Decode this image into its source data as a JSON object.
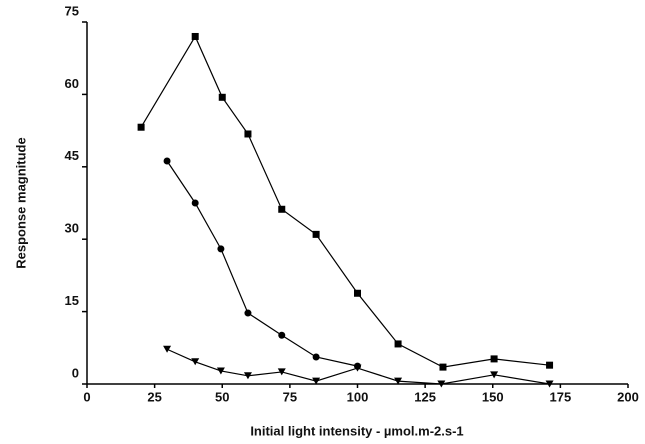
{
  "chart_data": {
    "type": "line",
    "x_label": "Initial light intensity - µmol.m-2.s-1",
    "y_label": "Response magnitude",
    "xlim": [
      0,
      200
    ],
    "xticks": [
      0,
      25,
      50,
      75,
      100,
      125,
      150,
      175,
      200
    ],
    "ylim": [
      0,
      75
    ],
    "yticks": [
      0,
      15,
      30,
      45,
      60,
      75
    ],
    "grid": false,
    "series": [
      {
        "marker": "square",
        "color": "#000000",
        "x": [
          20,
          40,
          50,
          59.5,
          72,
          84.7,
          100,
          115,
          131.6,
          150.5,
          171
        ],
        "values": [
          53.2,
          72,
          59.4,
          51.8,
          36.2,
          31,
          18.8,
          8.3,
          3.5,
          5.2,
          3.9
        ]
      },
      {
        "marker": "circle",
        "color": "#000000",
        "x": [
          29.6,
          40,
          49.5,
          59.5,
          72,
          84.7,
          100
        ],
        "values": [
          46.2,
          37.5,
          28,
          14.7,
          10.1,
          5.6,
          3.7
        ]
      },
      {
        "marker": "triangle-down",
        "color": "#000000",
        "x": [
          29.6,
          40,
          49.5,
          59.5,
          72,
          84.7,
          100,
          115,
          131,
          150.5,
          171
        ],
        "values": [
          7.2,
          4.6,
          2.7,
          1.7,
          2.5,
          0.6,
          3.3,
          0.6,
          0,
          1.9,
          0
        ]
      }
    ]
  }
}
